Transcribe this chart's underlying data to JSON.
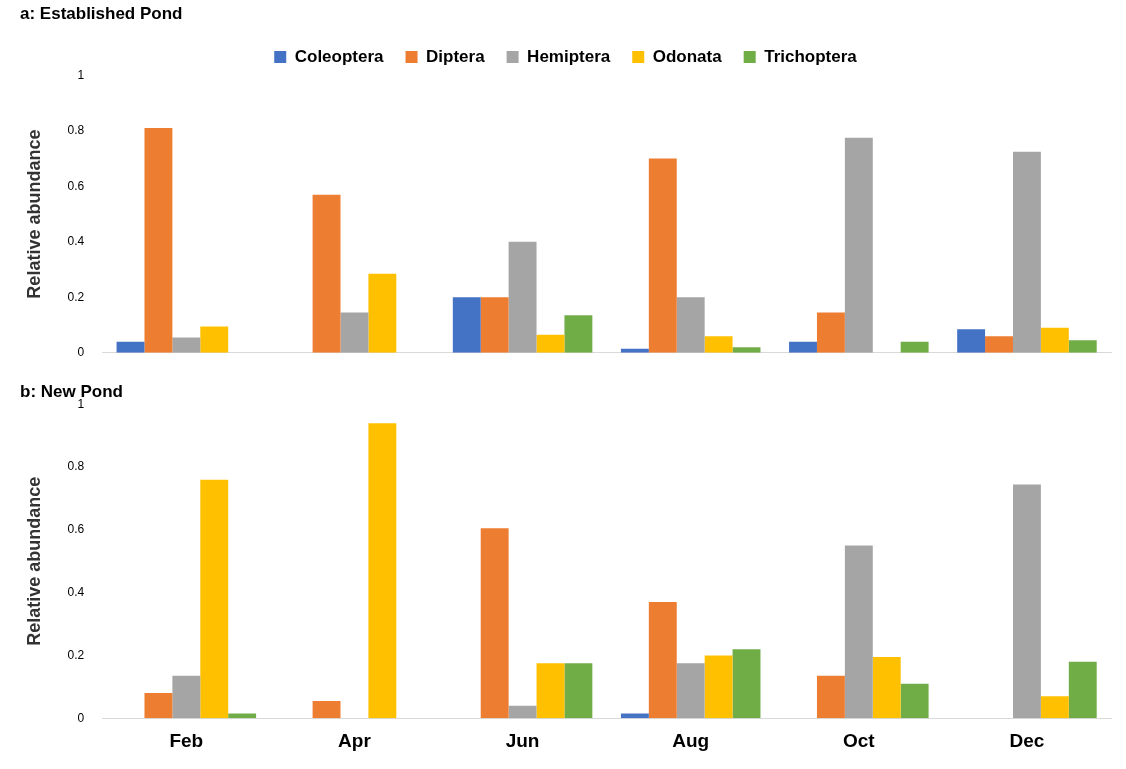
{
  "chart_data": [
    {
      "type": "bar",
      "title": "a: Established Pond",
      "ylabel": "Relative abundance",
      "categories": [
        null,
        null,
        null,
        null,
        null,
        null
      ],
      "ylim": [
        0,
        1
      ],
      "yticks": [
        0,
        0.2,
        0.4,
        0.6,
        0.8,
        1
      ],
      "grid": false,
      "legend": "top",
      "tick_labels": "y",
      "series": [
        {
          "name": "Coleoptera",
          "color": "#4472c4",
          "values": [
            0.04,
            0,
            0.2,
            0.015,
            0.04,
            0.085
          ]
        },
        {
          "name": "Diptera",
          "color": "#ed7d31",
          "values": [
            0.81,
            0.57,
            0.2,
            0.7,
            0.145,
            0.06
          ]
        },
        {
          "name": "Hemiptera",
          "color": "#a5a5a5",
          "values": [
            0.055,
            0.145,
            0.4,
            0.2,
            0.775,
            0.725
          ]
        },
        {
          "name": "Odonata",
          "color": "#ffc000",
          "values": [
            0.095,
            0.285,
            0.065,
            0.06,
            0,
            0.09
          ]
        },
        {
          "name": "Trichoptera",
          "color": "#70ad47",
          "values": [
            0,
            0,
            0.135,
            0.02,
            0.04,
            0.045
          ]
        }
      ]
    },
    {
      "type": "bar",
      "title": "b: New Pond",
      "ylabel": "Relative abundance",
      "categories": [
        "Feb",
        "Apr",
        "Jun",
        "Aug",
        "Oct",
        "Dec"
      ],
      "ylim": [
        0,
        1
      ],
      "yticks": [
        0,
        0.2,
        0.4,
        0.6,
        0.8,
        1
      ],
      "grid": false,
      "series": [
        {
          "color": "#4472c4",
          "values": [
            0,
            0,
            0,
            0.015,
            0,
            0
          ]
        },
        {
          "color": "#ed7d31",
          "values": [
            0.08,
            0.055,
            0.605,
            0.37,
            0.135,
            0
          ]
        },
        {
          "color": "#a5a5a5",
          "values": [
            0.135,
            0,
            0.04,
            0.175,
            0.55,
            0.745
          ]
        },
        {
          "color": "#ffc000",
          "values": [
            0.76,
            0.94,
            0.175,
            0.2,
            0.195,
            0.07
          ]
        },
        {
          "color": "#70ad47",
          "values": [
            0.015,
            0,
            0.175,
            0.22,
            0.11,
            0.18
          ]
        }
      ]
    }
  ]
}
